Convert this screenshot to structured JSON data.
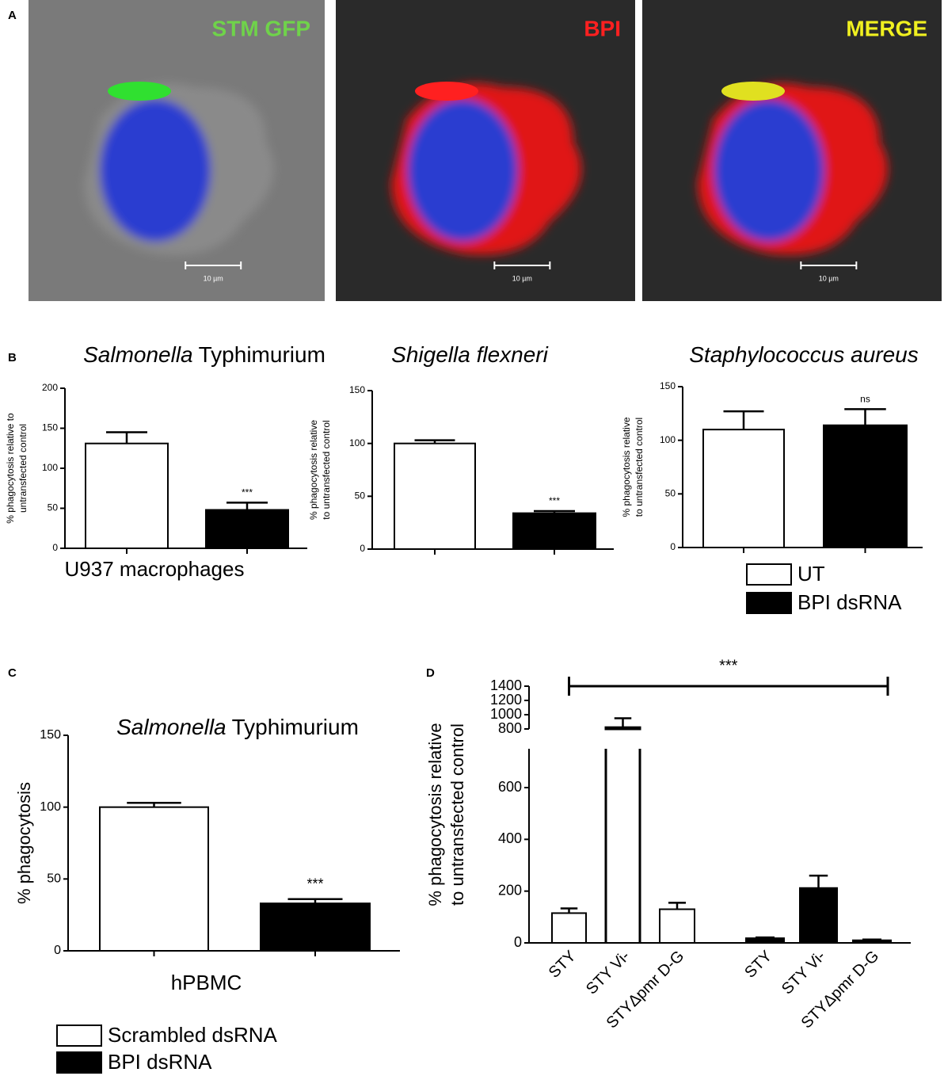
{
  "panel_labels": [
    "A",
    "B",
    "C",
    "D"
  ],
  "images": [
    {
      "label": "STM GFP",
      "color": "#6fd34a",
      "scale": "10 µm"
    },
    {
      "label": "BPI",
      "color": "#ff2020",
      "scale": "10 µm"
    },
    {
      "label": "MERGE",
      "color": "#f0f020",
      "scale": "10 µm"
    }
  ],
  "chart_data": [
    {
      "type": "bar",
      "title_parts": [
        {
          "text": "Salmonella",
          "italic": true
        },
        {
          "text": "Typhimurium"
        }
      ],
      "ylabel": [
        "% phagocytosis relative to",
        "untransfected control"
      ],
      "xlabel": "U937 macrophages",
      "categories": [
        null,
        null
      ],
      "values": [
        131,
        48
      ],
      "errors": [
        14,
        9
      ],
      "colors": [
        "#ffffff",
        "#000000"
      ],
      "ylim": [
        0,
        200
      ],
      "yticks": [
        0,
        50,
        100,
        150,
        200
      ],
      "annotations": [
        {
          "bar": 1,
          "text": "***"
        }
      ]
    },
    {
      "type": "bar",
      "title_parts": [
        {
          "text": "Shigella flexneri",
          "italic": true
        }
      ],
      "ylabel": [
        "% phagocytosis relative",
        "to untransfected control"
      ],
      "categories": [
        null,
        null
      ],
      "values": [
        100,
        34
      ],
      "errors": [
        3,
        2
      ],
      "colors": [
        "#ffffff",
        "#000000"
      ],
      "ylim": [
        0,
        150
      ],
      "yticks": [
        0,
        50,
        100,
        150
      ],
      "annotations": [
        {
          "bar": 1,
          "text": "***"
        }
      ]
    },
    {
      "type": "bar",
      "title_parts": [
        {
          "text": "Staphylococcus aureus",
          "italic": true
        }
      ],
      "ylabel": [
        "% phagocytosis relative",
        "to untransfected control"
      ],
      "categories": [
        null,
        null
      ],
      "values": [
        110,
        114
      ],
      "errors": [
        17,
        15
      ],
      "colors": [
        "#ffffff",
        "#000000"
      ],
      "ylim": [
        0,
        150
      ],
      "yticks": [
        0,
        50,
        100,
        150
      ],
      "annotations": [
        {
          "bar": 1,
          "text": "ns"
        }
      ],
      "legend": [
        {
          "name": "UT",
          "color": "#ffffff"
        },
        {
          "name": "BPI dsRNA",
          "color": "#000000"
        }
      ]
    },
    {
      "type": "bar",
      "title_parts": [
        {
          "text": "Salmonella",
          "italic": true
        },
        {
          "text": "Typhimurium"
        }
      ],
      "ylabel": [
        "% phagocytosis"
      ],
      "xlabel": "hPBMC",
      "categories": [
        null,
        null
      ],
      "values": [
        100,
        33
      ],
      "errors": [
        3,
        3
      ],
      "colors": [
        "#ffffff",
        "#000000"
      ],
      "ylim": [
        0,
        150
      ],
      "yticks": [
        0,
        50,
        100,
        150
      ],
      "annotations": [
        {
          "bar": 1,
          "text": "***"
        }
      ],
      "legend": [
        {
          "name": "Scrambled dsRNA",
          "color": "#ffffff"
        },
        {
          "name": "BPI dsRNA",
          "color": "#000000"
        }
      ]
    },
    {
      "type": "bar",
      "ylabel": [
        "% phagocytosis relative",
        "to untransfected control"
      ],
      "categories": [
        "STY",
        "STY Vi-",
        "STYΔpmr D-G",
        "STY",
        "STY Vi-",
        "STYΔpmr D-G"
      ],
      "values": [
        115,
        820,
        130,
        18,
        212,
        10
      ],
      "errors": [
        18,
        130,
        25,
        3,
        48,
        3
      ],
      "colors": [
        "#ffffff",
        "#ffffff",
        "#ffffff",
        "#000000",
        "#000000",
        "#000000"
      ],
      "ylim": [
        0,
        750
      ],
      "yticks": [
        0,
        200,
        400,
        600
      ],
      "y_break": {
        "ylim": [
          800,
          1400
        ],
        "yticks": [
          800,
          1000,
          1200,
          1400
        ]
      },
      "bracket": {
        "from": 0,
        "to": 5,
        "text": "***"
      }
    }
  ]
}
